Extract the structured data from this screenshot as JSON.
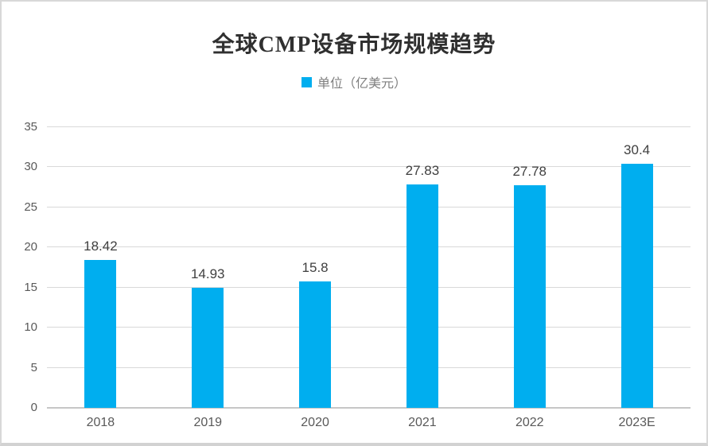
{
  "title": "全球CMP设备市场规模趋势",
  "legend": {
    "label": "单位（亿美元）"
  },
  "colors": {
    "bar": "#00AEEF",
    "grid": "#D9D9D9",
    "baseline": "#C6C6C6",
    "title_text": "#303030",
    "tick_text": "#595959",
    "data_label_text": "#404040",
    "legend_text": "#7F7F7F",
    "frame_border": "#D8D8D8"
  },
  "chart_data": {
    "type": "bar",
    "title": "全球CMP设备市场规模趋势",
    "legend_entries": [
      "单位（亿美元）"
    ],
    "legend_position": "top-center",
    "categories": [
      "2018",
      "2019",
      "2020",
      "2021",
      "2022",
      "2023E"
    ],
    "values": [
      18.42,
      14.93,
      15.8,
      27.83,
      27.78,
      30.4
    ],
    "data_labels": [
      "18.42",
      "14.93",
      "15.8",
      "27.83",
      "27.78",
      "30.4"
    ],
    "xlabel": "",
    "ylabel": "",
    "ylim": [
      0,
      35
    ],
    "yticks": [
      0,
      5,
      10,
      15,
      20,
      25,
      30,
      35
    ],
    "grid": true
  }
}
